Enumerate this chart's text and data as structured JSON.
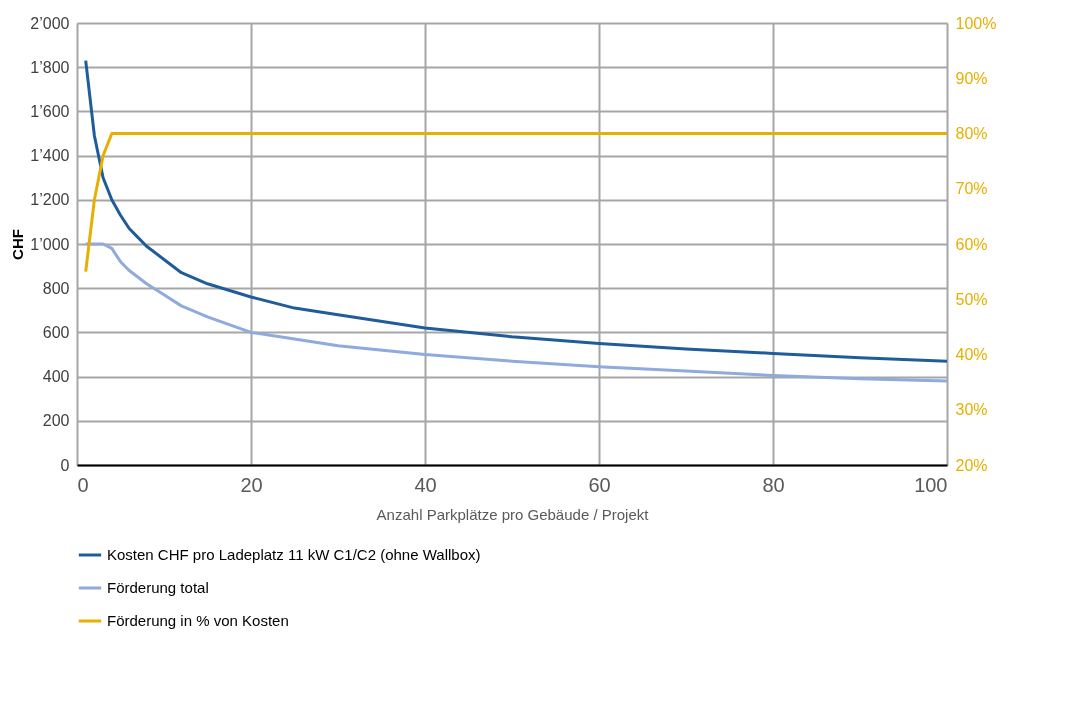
{
  "chart_data": {
    "type": "line",
    "xlabel": "Anzahl Parkplätze pro Gebäude / Projekt",
    "ylabel": "CHF",
    "xlim": [
      0,
      100
    ],
    "xticks": [
      0,
      20,
      40,
      60,
      80,
      100
    ],
    "ylim": [
      0,
      2000
    ],
    "yticks": [
      0,
      200,
      400,
      600,
      800,
      {
        "value": 1000,
        "label": "1’000"
      },
      {
        "value": 1200,
        "label": "1’200"
      },
      {
        "value": 1400,
        "label": "1’400"
      },
      {
        "value": 1600,
        "label": "1’600"
      },
      {
        "value": 1800,
        "label": "1’800"
      },
      {
        "value": 2000,
        "label": "2’000"
      }
    ],
    "y2lim": [
      20,
      100
    ],
    "y2ticks": [
      {
        "value": 20,
        "label": "20%"
      },
      {
        "value": 30,
        "label": "30%"
      },
      {
        "value": 40,
        "label": "40%"
      },
      {
        "value": 50,
        "label": "50%"
      },
      {
        "value": 60,
        "label": "60%"
      },
      {
        "value": 70,
        "label": "70%"
      },
      {
        "value": 80,
        "label": "80%"
      },
      {
        "value": 90,
        "label": "90%"
      },
      {
        "value": 100,
        "label": "100%"
      }
    ],
    "grid": true,
    "legend": "bottom",
    "marker": "none",
    "line_style": "solid",
    "series": [
      {
        "name": "Kosten CHF pro Ladeplatz 11 kW C1/C2 (ohne Wallbox)",
        "color": "#1f5c99",
        "x": [
          1,
          2,
          3,
          4,
          5,
          6,
          7,
          8,
          10,
          12,
          15,
          20,
          25,
          30,
          40,
          50,
          60,
          70,
          80,
          90,
          100
        ],
        "values": [
          1830,
          1490,
          1300,
          1200,
          1130,
          1070,
          1030,
          990,
          930,
          870,
          820,
          760,
          710,
          680,
          620,
          580,
          550,
          525,
          505,
          485,
          470
        ]
      },
      {
        "name": "Förderung total",
        "color": "#8faadc",
        "x": [
          1,
          3,
          4,
          5,
          6,
          8,
          10,
          12,
          15,
          20,
          25,
          30,
          40,
          50,
          60,
          70,
          80,
          90,
          100
        ],
        "values": [
          1000,
          1000,
          980,
          920,
          880,
          820,
          770,
          720,
          670,
          600,
          570,
          540,
          500,
          470,
          445,
          425,
          405,
          390,
          380
        ]
      },
      {
        "name": "Förderung in % von Kosten",
        "color": "#e6b000",
        "axis": "y2",
        "x": [
          1,
          2,
          3,
          4,
          100
        ],
        "values": [
          55,
          68,
          76,
          80,
          80
        ]
      }
    ]
  }
}
